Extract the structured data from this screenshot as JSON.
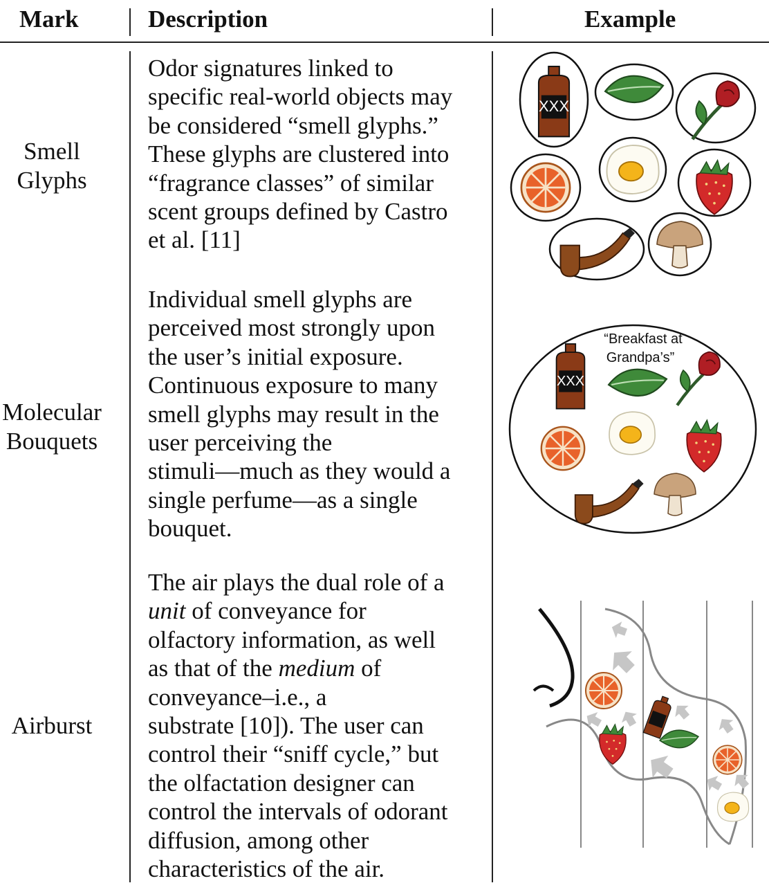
{
  "headers": {
    "mark": "Mark",
    "description": "Description",
    "example": "Example"
  },
  "rows": [
    {
      "mark_lines": [
        "Smell",
        "Glyphs"
      ],
      "desc_lines": [
        "Odor signatures linked to",
        "specific real-world objects may",
        "be considered “smell glyphs.”",
        "These glyphs are clustered into",
        "“fragrance classes” of similar",
        "scent groups defined by Castro",
        "et al. [11]"
      ]
    },
    {
      "mark_lines": [
        "Molecular",
        "Bouquets"
      ],
      "desc_lines": [
        "Individual smell glyphs are",
        "perceived most strongly upon",
        "the user’s initial exposure.",
        "Continuous exposure to many",
        "smell glyphs may result in the",
        "user perceiving the",
        "stimuli—much as they would a",
        "single perfume—as a single",
        "bouquet."
      ],
      "example_caption_lines": [
        "“Breakfast at",
        "Grandpa’s”"
      ]
    },
    {
      "mark_lines": [
        "Airburst"
      ],
      "desc_lines": [
        "The air plays the dual role of a",
        "unit of conveyance for",
        "olfactory information, as well",
        "as that of the medium of",
        "conveyance–i.e., a",
        "substrate [10]). The user can",
        "control their “sniff cycle,” but",
        "the olfactation designer can",
        "control the intervals of odorant",
        "diffusion, among other",
        "characteristics of the air."
      ]
    }
  ],
  "bottle_label": "XXX",
  "colors": {
    "bottle": "#8a3a17",
    "bottle_label": "#111111",
    "leaf": "#3f8a3a",
    "rose": "#b01e24",
    "orange": "#e8622a",
    "egg_yolk": "#f4b41a",
    "strawberry": "#d32a2a",
    "pipe": "#8b4a1c",
    "mushroom": "#c9a37c",
    "arrow": "#c6c6c6"
  },
  "icons": [
    "bottle-icon",
    "leaf-icon",
    "rose-icon",
    "orange-icon",
    "egg-icon",
    "strawberry-icon",
    "pipe-icon",
    "mushroom-icon",
    "nose-icon",
    "arrow-icon"
  ]
}
